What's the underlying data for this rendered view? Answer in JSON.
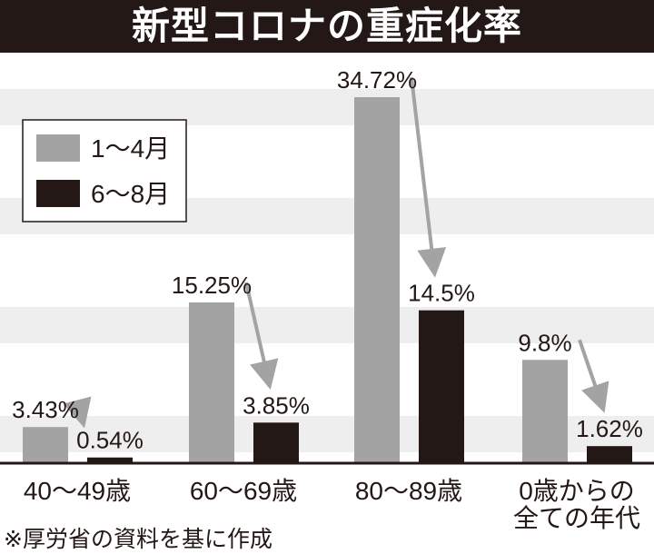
{
  "title": "新型コロナの重症化率",
  "footnote": "※厚労省の資料を基に作成",
  "colors": {
    "series_1": "#a3a3a3",
    "series_2": "#231815",
    "title_bg": "#231815",
    "stripe": "#eeeeee",
    "arrow": "#a3a3a3"
  },
  "chart_data": {
    "type": "bar",
    "title": "新型コロナの重症化率",
    "categories": [
      [
        "40〜49歳"
      ],
      [
        "60〜69歳"
      ],
      [
        "80〜89歳"
      ],
      [
        "0歳からの",
        "全ての年代"
      ]
    ],
    "series": [
      {
        "name": "1〜4月",
        "values": [
          3.43,
          15.25,
          34.72,
          9.8
        ],
        "labels": [
          "3.43%",
          "15.25%",
          "34.72%",
          "9.8%"
        ]
      },
      {
        "name": "6〜8月",
        "values": [
          0.54,
          3.85,
          14.5,
          1.62
        ],
        "labels": [
          "0.54%",
          "3.85%",
          "14.5%",
          "1.62%"
        ]
      }
    ],
    "ylim": [
      0,
      36
    ],
    "legend": "top-left",
    "grid": false,
    "annotations": "arrows from each 1〜4月 bar to the matching 6〜8月 bar"
  }
}
